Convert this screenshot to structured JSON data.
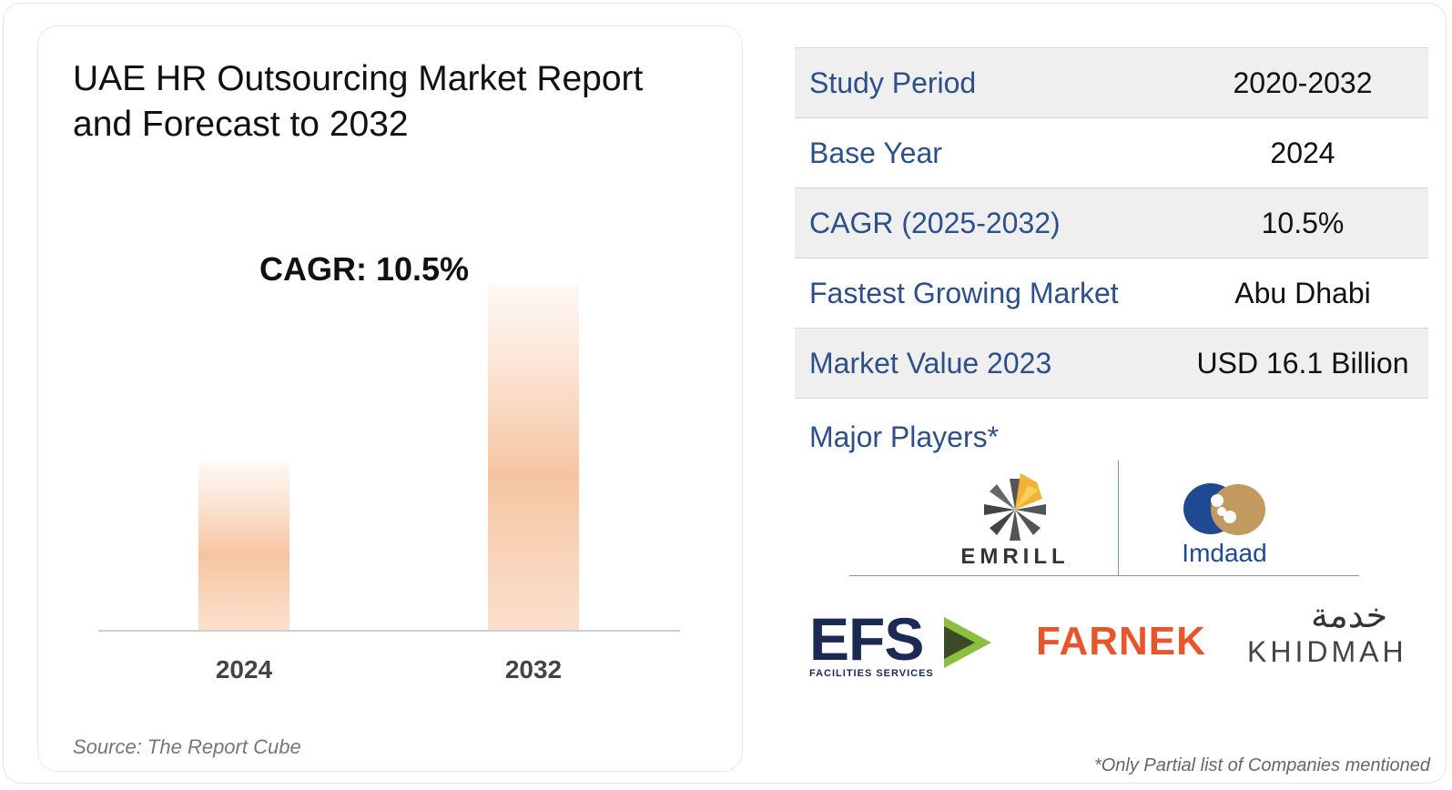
{
  "title": "UAE HR Outsourcing Market Report and Forecast to 2032",
  "cagr_label": "CAGR: 10.5%",
  "source": "Source: The Report Cube",
  "chart_data": {
    "type": "bar",
    "categories": [
      "2024",
      "2032"
    ],
    "values": [
      1.0,
      2.06
    ],
    "title": "",
    "xlabel": "",
    "ylabel": "",
    "ylim": [
      0,
      2.4
    ],
    "grid": false,
    "bar_color": "#f5c7a5"
  },
  "table": [
    {
      "label": "Study Period",
      "value": "2020-2032"
    },
    {
      "label": "Base Year",
      "value": "2024"
    },
    {
      "label": "CAGR (2025-2032)",
      "value": "10.5%"
    },
    {
      "label": "Fastest Growing Market",
      "value": "Abu Dhabi"
    },
    {
      "label": "Market Value 2023",
      "value": "USD 16.1 Billion"
    }
  ],
  "players_heading": "Major Players*",
  "players": {
    "emrill": "EMRILL",
    "imdaad": "Imdaad",
    "efs": "EFS",
    "efs_sub": "FACILITIES SERVICES",
    "farnek": "FARNEK",
    "khidmah": "KHIDMAH",
    "khidmah_ar": "خدمة"
  },
  "footnote": "*Only Partial list of Companies mentioned",
  "colors": {
    "label_blue": "#2d4f8a",
    "row_shade": "#efefef",
    "bar_peach": "#f5c7a5",
    "efs_navy": "#1a2a55",
    "farnek_orange": "#e8552b",
    "khidmah_teal": "#2bb3a9"
  }
}
